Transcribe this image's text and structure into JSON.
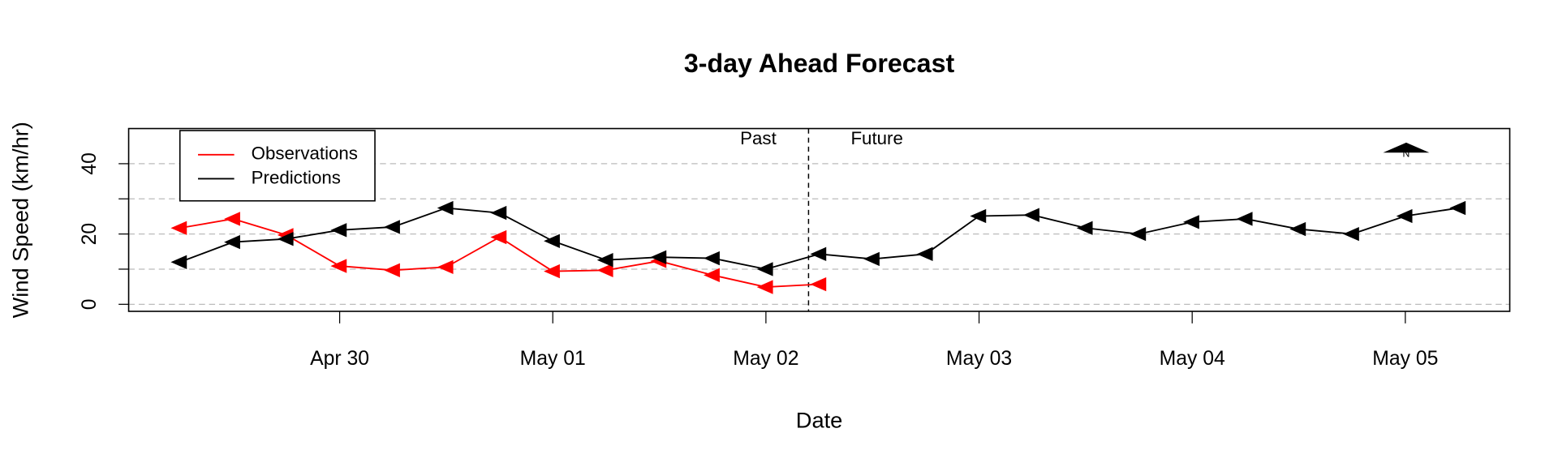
{
  "chart_data": {
    "type": "line",
    "title": "3-day Ahead Forecast",
    "xlabel": "Date",
    "ylabel": "Wind Speed (km/hr)",
    "series": [
      {
        "name": "Observations",
        "color": "#ff0000",
        "x": [
          29.25,
          29.5,
          29.75,
          30.0,
          30.25,
          30.5,
          30.75,
          31.0,
          31.25,
          31.5,
          31.75,
          32.0,
          32.25
        ],
        "values": [
          21.7,
          24.3,
          19.7,
          10.9,
          9.7,
          10.6,
          19.1,
          9.4,
          9.7,
          12.3,
          8.3,
          4.9,
          5.7
        ]
      },
      {
        "name": "Predictions",
        "color": "#000000",
        "x": [
          29.25,
          29.5,
          29.75,
          30.0,
          30.25,
          30.5,
          30.75,
          31.0,
          31.25,
          31.5,
          31.75,
          32.0,
          32.25,
          32.5,
          32.75,
          33.0,
          33.25,
          33.5,
          33.75,
          34.0,
          34.25,
          34.5,
          34.75,
          35.0,
          35.25
        ],
        "values": [
          12,
          17.7,
          18.6,
          21.1,
          22,
          27.4,
          26,
          18,
          12.6,
          13.4,
          13.1,
          10,
          14.3,
          12.9,
          14.3,
          25.1,
          25.4,
          21.7,
          20,
          23.4,
          24.3,
          21.4,
          20,
          25.1,
          27.4
        ]
      }
    ],
    "xlim": [
      29.01,
      35.49
    ],
    "xticks": [
      {
        "value": 30,
        "label": "Apr 30"
      },
      {
        "value": 31,
        "label": "May 01"
      },
      {
        "value": 32,
        "label": "May 02"
      },
      {
        "value": 33,
        "label": "May 03"
      },
      {
        "value": 34,
        "label": "May 04"
      },
      {
        "value": 35,
        "label": "May 05"
      }
    ],
    "ylim": [
      -2,
      50
    ],
    "yticks": [
      0,
      20,
      40
    ],
    "ygrid": [
      0,
      10,
      20,
      30,
      40
    ],
    "divider": {
      "x": 32.2,
      "left_label": "Past",
      "right_label": "Future"
    },
    "legend": "top-left"
  }
}
